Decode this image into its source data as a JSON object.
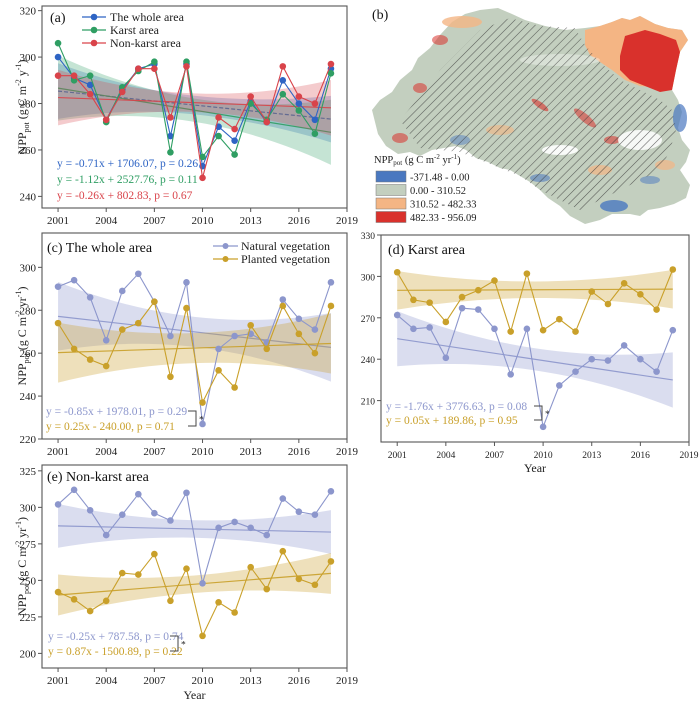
{
  "figure": {
    "x_axis_title": "Year",
    "y_axis_title_main": "NPP",
    "y_axis_title_sub": "pot",
    "y_axis_title_unit": "(g C m",
    "y_axis_title_unit_sup1": "-2",
    "y_axis_title_unit_mid": " y",
    "y_axis_title_unit_mid2": " yr",
    "y_axis_title_unit_sup2": "-1",
    "y_axis_title_unit_end": ")",
    "significance_marker": "*"
  },
  "map": {
    "panel_label": "(b)",
    "legend_title_main": "NPP",
    "legend_title_sub": "pot",
    "legend_title_unit": " (g C m",
    "legend_title_sup1": "-2",
    "legend_title_mid": " yr",
    "legend_title_sup2": "-1",
    "legend_title_end": ")",
    "classes": [
      {
        "label": "-371.48 - 0.00",
        "color": "#4a78c0"
      },
      {
        "label": "0.00 - 310.52",
        "color": "#c3cfbf"
      },
      {
        "label": "310.52 - 482.33",
        "color": "#f4b584"
      },
      {
        "label": "482.33 - 956.09",
        "color": "#d9312c"
      }
    ],
    "hatch_meaning": "karst area"
  },
  "chart_data": [
    {
      "id": "a",
      "type": "line",
      "title": "(a)",
      "xlabel": "",
      "ylabel": "NPPpot (g C m-2 y-1)",
      "x": [
        2001,
        2002,
        2003,
        2004,
        2005,
        2006,
        2007,
        2008,
        2009,
        2010,
        2011,
        2012,
        2013,
        2014,
        2015,
        2016,
        2017,
        2018
      ],
      "xlim": [
        2000,
        2019
      ],
      "xticks": [
        2001,
        2004,
        2007,
        2010,
        2013,
        2016,
        2019
      ],
      "ylim": [
        235,
        322
      ],
      "yticks": [
        240,
        260,
        280,
        300,
        320
      ],
      "legend": "top-left",
      "grid": false,
      "series": [
        {
          "name": "The whole area",
          "color": "#2e64c4",
          "values": [
            300,
            291,
            288,
            273,
            286,
            295,
            297,
            266,
            297,
            253,
            270,
            264,
            281,
            272,
            290,
            280,
            273,
            295
          ],
          "trend": {
            "slope": -0.71,
            "intercept": 1706.07,
            "p": 0.26,
            "ci_halfwidth_ends": [
              12,
              10
            ],
            "ci_halfwidth_mid": 4
          },
          "equation": "y = -0.71x + 1706.07, p = 0.26"
        },
        {
          "name": "Karst area",
          "color": "#2f9e63",
          "values": [
            306,
            290,
            292,
            272,
            287,
            294,
            298,
            259,
            298,
            257,
            266,
            258,
            280,
            273,
            284,
            277,
            267,
            293
          ],
          "trend": {
            "slope": -1.12,
            "intercept": 2527.76,
            "p": 0.11,
            "ci_halfwidth_ends": [
              14,
              14
            ],
            "ci_halfwidth_mid": 5
          },
          "equation": "y = -1.12x + 2527.76, p = 0.11"
        },
        {
          "name": "Non-karst area",
          "color": "#d9434a",
          "values": [
            292,
            292,
            284,
            273,
            285,
            295,
            295,
            274,
            296,
            248,
            274,
            269,
            283,
            272,
            296,
            283,
            280,
            297
          ],
          "trend": {
            "slope": -0.26,
            "intercept": 802.83,
            "p": 0.67,
            "ci_halfwidth_ends": [
              12,
              12
            ],
            "ci_halfwidth_mid": 4
          },
          "equation": "y = -0.26x + 802.83, p = 0.67"
        }
      ]
    },
    {
      "id": "c",
      "type": "line",
      "title": "(c) The whole area",
      "xlabel": "",
      "ylabel": "NPPpot (g C m-2 yr-1)",
      "x": [
        2001,
        2002,
        2003,
        2004,
        2005,
        2006,
        2007,
        2008,
        2009,
        2010,
        2011,
        2012,
        2013,
        2014,
        2015,
        2016,
        2017,
        2018
      ],
      "xlim": [
        2000,
        2019
      ],
      "xticks": [
        2001,
        2004,
        2007,
        2010,
        2013,
        2016,
        2019
      ],
      "ylim": [
        220,
        316
      ],
      "yticks": [
        220,
        240,
        260,
        280,
        300
      ],
      "legend": "top-right",
      "grid": false,
      "series": [
        {
          "name": "Natural vegetation",
          "color": "#8c96cc",
          "values": [
            291,
            294,
            286,
            266,
            289,
            297,
            284,
            268,
            293,
            227,
            262,
            268,
            269,
            265,
            285,
            276,
            271,
            293
          ],
          "trend": {
            "slope": -0.85,
            "intercept": 1978.01,
            "p": 0.29,
            "ci_halfwidth_ends": [
              16,
              16
            ],
            "ci_halfwidth_mid": 7
          },
          "equation": "y =  -0.85x + 1978.01, p = 0.29"
        },
        {
          "name": "Planted vegetation",
          "color": "#c9a02a",
          "values": [
            274,
            262,
            257,
            254,
            271,
            274,
            284,
            249,
            281,
            237,
            252,
            244,
            273,
            262,
            282,
            269,
            260,
            282
          ],
          "trend": {
            "slope": 0.25,
            "intercept": -240.0,
            "p": 0.71,
            "ci_halfwidth_ends": [
              14,
              14
            ],
            "ci_halfwidth_mid": 7
          },
          "equation": "y = 0.25x - 240.00, p = 0.71"
        }
      ]
    },
    {
      "id": "d",
      "type": "line",
      "title": "(d) Karst area",
      "xlabel": "Year",
      "ylabel": "",
      "x": [
        2001,
        2002,
        2003,
        2004,
        2005,
        2006,
        2007,
        2008,
        2009,
        2010,
        2011,
        2012,
        2013,
        2014,
        2015,
        2016,
        2017,
        2018
      ],
      "xlim": [
        2000,
        2019
      ],
      "xticks": [
        2001,
        2004,
        2007,
        2010,
        2013,
        2016,
        2019
      ],
      "ylim": [
        180,
        330
      ],
      "yticks": [
        210,
        240,
        270,
        300,
        330
      ],
      "legend": "none",
      "grid": false,
      "series": [
        {
          "name": "Natural vegetation",
          "color": "#8c96cc",
          "values": [
            272,
            262,
            263,
            241,
            277,
            276,
            262,
            229,
            262,
            191,
            221,
            231,
            240,
            239,
            250,
            240,
            231,
            261
          ],
          "trend": {
            "slope": -1.76,
            "intercept": 3776.63,
            "p": 0.08,
            "ci_halfwidth_ends": [
              20,
              20
            ],
            "ci_halfwidth_mid": 8
          },
          "equation": "y = -1.76x + 3776.63, p = 0.08"
        },
        {
          "name": "Planted vegetation",
          "color": "#c9a02a",
          "values": [
            303,
            283,
            281,
            267,
            285,
            290,
            297,
            260,
            302,
            261,
            269,
            260,
            289,
            280,
            295,
            287,
            276,
            305
          ],
          "trend": {
            "slope": 0.05,
            "intercept": 189.86,
            "p": 0.95,
            "ci_halfwidth_ends": [
              14,
              14
            ],
            "ci_halfwidth_mid": 6
          },
          "equation": "y = 0.05x + 189.86, p = 0.95"
        }
      ]
    },
    {
      "id": "e",
      "type": "line",
      "title": "(e) Non-karst area",
      "xlabel": "Year",
      "ylabel": "NPPpot (g C m-2 yr-1)",
      "x": [
        2001,
        2002,
        2003,
        2004,
        2005,
        2006,
        2007,
        2008,
        2009,
        2010,
        2011,
        2012,
        2013,
        2014,
        2015,
        2016,
        2017,
        2018
      ],
      "xlim": [
        2000,
        2019
      ],
      "xticks": [
        2001,
        2004,
        2007,
        2010,
        2013,
        2016,
        2019
      ],
      "ylim": [
        190,
        329
      ],
      "yticks": [
        200,
        225,
        250,
        275,
        300,
        325
      ],
      "legend": "none",
      "grid": false,
      "series": [
        {
          "name": "Natural vegetation",
          "color": "#8c96cc",
          "values": [
            302,
            312,
            298,
            281,
            295,
            309,
            296,
            291,
            310,
            248,
            286,
            290,
            286,
            281,
            306,
            297,
            295,
            311
          ],
          "trend": {
            "slope": -0.25,
            "intercept": 787.58,
            "p": 0.74,
            "ci_halfwidth_ends": [
              15,
              15
            ],
            "ci_halfwidth_mid": 6
          },
          "equation": "y = -0.25x + 787.58, p = 0.74"
        },
        {
          "name": "Planted vegetation",
          "color": "#c9a02a",
          "values": [
            242,
            237,
            229,
            236,
            255,
            254,
            268,
            236,
            258,
            212,
            235,
            228,
            259,
            244,
            270,
            251,
            247,
            263
          ],
          "trend": {
            "slope": 0.87,
            "intercept": -1500.89,
            "p": 0.22,
            "ci_halfwidth_ends": [
              14,
              14
            ],
            "ci_halfwidth_mid": 6
          },
          "equation": "y = 0.87x - 1500.89, p = 0.22"
        }
      ]
    }
  ]
}
